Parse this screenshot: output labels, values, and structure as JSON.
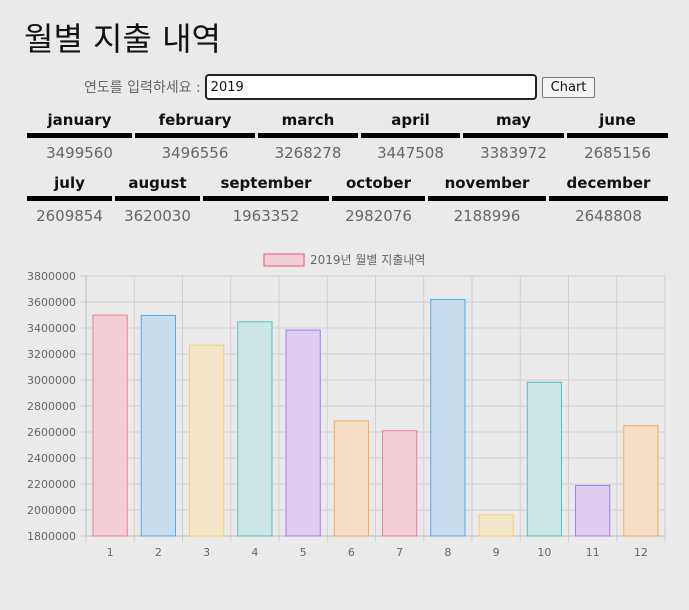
{
  "page": {
    "title": "월별 지출 내역",
    "input_label": "연도를 입력하세요 :",
    "input_value": "2019",
    "button_label": "Chart"
  },
  "table": {
    "row1": [
      {
        "month": "january",
        "value": "3499560"
      },
      {
        "month": "february",
        "value": "3496556"
      },
      {
        "month": "march",
        "value": "3268278"
      },
      {
        "month": "april",
        "value": "3447508"
      },
      {
        "month": "may",
        "value": "3383972"
      },
      {
        "month": "june",
        "value": "2685156"
      }
    ],
    "row2": [
      {
        "month": "july",
        "value": "2609854"
      },
      {
        "month": "august",
        "value": "3620030"
      },
      {
        "month": "september",
        "value": "1963352"
      },
      {
        "month": "october",
        "value": "2982076"
      },
      {
        "month": "november",
        "value": "2188996"
      },
      {
        "month": "december",
        "value": "2648808"
      }
    ]
  },
  "chart_data": {
    "type": "bar",
    "categories": [
      "1",
      "2",
      "3",
      "4",
      "5",
      "6",
      "7",
      "8",
      "9",
      "10",
      "11",
      "12"
    ],
    "series": [
      {
        "name": "2019년 월별 지출내역",
        "values": [
          3499560,
          3496556,
          3268278,
          3447508,
          3383972,
          2685156,
          2609854,
          3620030,
          1963352,
          2982076,
          2188996,
          2648808
        ]
      }
    ],
    "ylim": [
      1800000,
      3800000
    ],
    "yticks": [
      "3800000",
      "3600000",
      "3400000",
      "3200000",
      "3000000",
      "2800000",
      "2600000",
      "2400000",
      "2200000",
      "2000000",
      "1800000"
    ],
    "grid": true,
    "legend": "top-center",
    "colors": {
      "fill": [
        "#f2cfd6",
        "#c8deee",
        "#f3e6c8",
        "#cce6e5",
        "#dccdf1",
        "#f6ddc5"
      ],
      "stroke": [
        "#f07d97",
        "#52a8e8",
        "#f5cf71",
        "#55c1c0",
        "#a37bf5",
        "#f7ab5c"
      ]
    }
  }
}
